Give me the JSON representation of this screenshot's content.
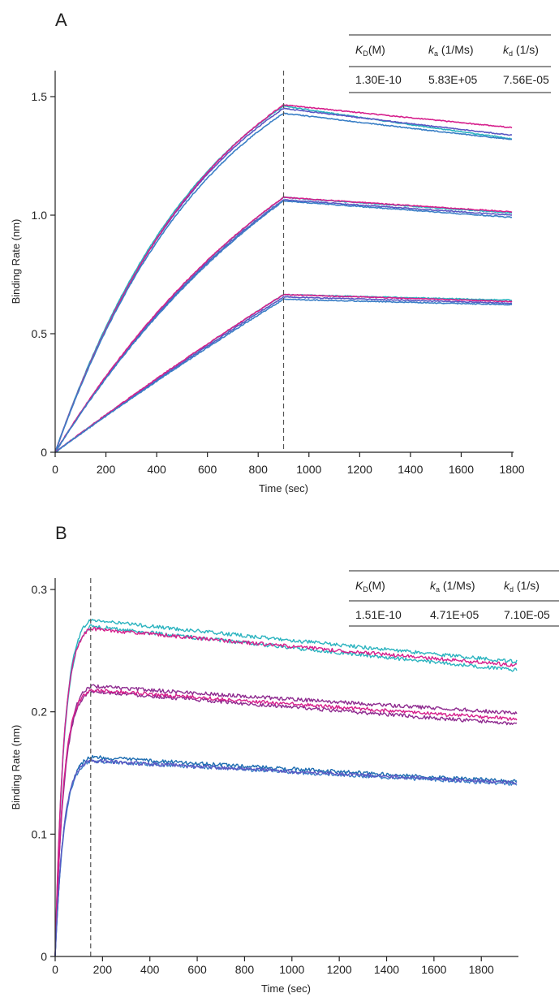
{
  "colors": {
    "cyan": "#2ab3bf",
    "blue": "#3a7fc6",
    "purple": "#5b57c3",
    "magenta": "#d61f8c",
    "plum": "#8e2a8f",
    "navy": "#1b6bb0",
    "axis": "#222222",
    "dash": "#555555"
  },
  "chart_data": [
    {
      "type": "line",
      "panel_label": "A",
      "xlabel": "Time (sec)",
      "ylabel": "Binding Rate (nm)",
      "xlim": [
        0,
        1800
      ],
      "ylim": [
        0,
        1.5
      ],
      "xticks": [
        0,
        200,
        400,
        600,
        800,
        1000,
        1200,
        1400,
        1600,
        1800
      ],
      "yticks": [
        0,
        0.5,
        1.0,
        1.5
      ],
      "ytick_labels": [
        "0",
        "0.5",
        "1.0",
        "1.5"
      ],
      "vline_x": 900,
      "table": {
        "headers": [
          {
            "sym": "K",
            "sub": "D",
            "rest": "(M)"
          },
          {
            "sym": "k",
            "sub": "a",
            "rest": " (1/Ms)"
          },
          {
            "sym": "k",
            "sub": "d",
            "rest": " (1/s)"
          }
        ],
        "values": [
          "1.30E-10",
          "5.83E+05",
          "7.56E-05"
        ]
      },
      "association_end": 900,
      "x_end": 1800,
      "curves": [
        {
          "color": "cyan",
          "peak": 1.46,
          "shape": 1.47,
          "kd": 0.00011
        },
        {
          "color": "purple",
          "peak": 1.45,
          "shape": 1.44,
          "kd": 9e-05
        },
        {
          "color": "magenta",
          "peak": 1.465,
          "shape": 1.4,
          "kd": 7.5e-05
        },
        {
          "color": "blue",
          "peak": 1.43,
          "shape": 1.44,
          "kd": 9e-05
        },
        {
          "color": "cyan",
          "peak": 1.075,
          "shape": 0.8,
          "kd": 7e-05
        },
        {
          "color": "purple",
          "peak": 1.065,
          "shape": 0.8,
          "kd": 7e-05
        },
        {
          "color": "magenta",
          "peak": 1.075,
          "shape": 0.82,
          "kd": 6.5e-05
        },
        {
          "color": "blue",
          "peak": 1.06,
          "shape": 0.78,
          "kd": 7.5e-05
        },
        {
          "color": "cyan",
          "peak": 0.665,
          "shape": 0.16,
          "kd": 4e-05
        },
        {
          "color": "purple",
          "peak": 0.655,
          "shape": 0.16,
          "kd": 4.5e-05
        },
        {
          "color": "magenta",
          "peak": 0.665,
          "shape": 0.18,
          "kd": 5e-05
        },
        {
          "color": "blue",
          "peak": 0.645,
          "shape": 0.16,
          "kd": 4e-05
        }
      ]
    },
    {
      "type": "line",
      "panel_label": "B",
      "xlabel": "Time (sec)",
      "ylabel": "Binding Rate (nm)",
      "xlim": [
        0,
        1950
      ],
      "ylim": [
        0,
        0.3
      ],
      "xticks": [
        0,
        200,
        400,
        600,
        800,
        1000,
        1200,
        1400,
        1600,
        1800
      ],
      "yticks": [
        0,
        0.1,
        0.2,
        0.3
      ],
      "ytick_labels": [
        "0",
        "0.1",
        "0.2",
        "0.3"
      ],
      "vline_x": 150,
      "table": {
        "headers": [
          {
            "sym": "K",
            "sub": "D",
            "rest": "(M)"
          },
          {
            "sym": "k",
            "sub": "a",
            "rest": " (1/Ms)"
          },
          {
            "sym": "k",
            "sub": "d",
            "rest": " (1/s)"
          }
        ],
        "values": [
          "1.51E-10",
          "4.71E+05",
          "7.10E-05"
        ]
      },
      "association_end": 150,
      "x_end": 1950,
      "curves": [
        {
          "color": "cyan",
          "peak": 0.275,
          "shape": 4.0,
          "end": 0.241
        },
        {
          "color": "cyan",
          "peak": 0.27,
          "shape": 4.0,
          "end": 0.234
        },
        {
          "color": "magenta",
          "peak": 0.268,
          "shape": 4.2,
          "end": 0.238
        },
        {
          "color": "plum",
          "peak": 0.221,
          "shape": 4.0,
          "end": 0.199
        },
        {
          "color": "plum",
          "peak": 0.217,
          "shape": 4.0,
          "end": 0.19
        },
        {
          "color": "magenta",
          "peak": 0.218,
          "shape": 4.2,
          "end": 0.194
        },
        {
          "color": "navy",
          "peak": 0.163,
          "shape": 4.0,
          "end": 0.143
        },
        {
          "color": "blue",
          "peak": 0.16,
          "shape": 4.0,
          "end": 0.141
        },
        {
          "color": "purple",
          "peak": 0.16,
          "shape": 4.2,
          "end": 0.142
        }
      ]
    }
  ]
}
